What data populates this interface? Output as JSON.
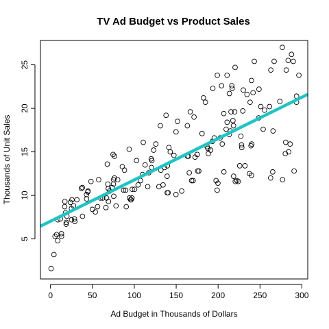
{
  "chart_data": {
    "type": "scatter",
    "title": "TV Ad Budget vs Product Sales",
    "xlabel": "Ad Budget in Thousands of Dollars",
    "ylabel": "Thousands of Unit Sales",
    "xlim": [
      -12,
      307
    ],
    "ylim": [
      0.4,
      27.8
    ],
    "xticks": [
      0,
      50,
      100,
      150,
      200,
      250,
      300
    ],
    "yticks": [
      5,
      10,
      15,
      20,
      25
    ],
    "grid": false,
    "point_style": "open-circle",
    "fit_line": {
      "intercept": 7.03,
      "slope": 0.0475,
      "color": "#20c4c4"
    },
    "points": [
      [
        0.7,
        1.6
      ],
      [
        4.1,
        3.2
      ],
      [
        5.4,
        5.3
      ],
      [
        7.3,
        5.5
      ],
      [
        8.6,
        4.8
      ],
      [
        8.7,
        7.2
      ],
      [
        11.7,
        7.3
      ],
      [
        13.1,
        5.6
      ],
      [
        13.2,
        5.3
      ],
      [
        16.9,
        8.7
      ],
      [
        17.2,
        9.3
      ],
      [
        17.9,
        8.0
      ],
      [
        18.7,
        6.7
      ],
      [
        18.8,
        6.9
      ],
      [
        19.6,
        7.6
      ],
      [
        23.8,
        9.2
      ],
      [
        25.0,
        8.5
      ],
      [
        25.1,
        7.2
      ],
      [
        25.6,
        9.5
      ],
      [
        27.5,
        8.8
      ],
      [
        28.6,
        7.3
      ],
      [
        29.0,
        7.0
      ],
      [
        31.5,
        9.5
      ],
      [
        36.9,
        10.8
      ],
      [
        38.0,
        10.9
      ],
      [
        38.2,
        7.6
      ],
      [
        43.0,
        10.1
      ],
      [
        43.1,
        9.6
      ],
      [
        44.5,
        10.4
      ],
      [
        44.7,
        10.5
      ],
      [
        48.3,
        11.6
      ],
      [
        50.0,
        8.4
      ],
      [
        53.5,
        8.1
      ],
      [
        56.2,
        8.7
      ],
      [
        57.5,
        11.8
      ],
      [
        59.6,
        9.7
      ],
      [
        62.3,
        9.7
      ],
      [
        66.1,
        8.6
      ],
      [
        66.9,
        9.7
      ],
      [
        67.8,
        13.6
      ],
      [
        68.4,
        11.3
      ],
      [
        69.0,
        10.8
      ],
      [
        69.2,
        9.3
      ],
      [
        70.6,
        10.5
      ],
      [
        73.4,
        10.9
      ],
      [
        74.7,
        14.7
      ],
      [
        75.1,
        11.3
      ],
      [
        75.3,
        11.8
      ],
      [
        75.5,
        9.9
      ],
      [
        76.3,
        12.0
      ],
      [
        76.4,
        14.5
      ],
      [
        78.2,
        8.8
      ],
      [
        80.2,
        11.8
      ],
      [
        85.7,
        13.3
      ],
      [
        87.2,
        10.6
      ],
      [
        88.3,
        12.9
      ],
      [
        89.7,
        10.6
      ],
      [
        90.4,
        8.7
      ],
      [
        93.9,
        15.3
      ],
      [
        94.2,
        9.7
      ],
      [
        95.7,
        9.5
      ],
      [
        96.2,
        9.5
      ],
      [
        97.2,
        9.7
      ],
      [
        97.5,
        10.7
      ],
      [
        100.4,
        10.7
      ],
      [
        102.7,
        14.0
      ],
      [
        104.6,
        11.2
      ],
      [
        107.4,
        11.7
      ],
      [
        109.8,
        12.4
      ],
      [
        110.7,
        16.1
      ],
      [
        112.9,
        13.5
      ],
      [
        116.0,
        11.0
      ],
      [
        117.2,
        12.6
      ],
      [
        120.2,
        14.2
      ],
      [
        120.5,
        13.2
      ],
      [
        121.0,
        14.0
      ],
      [
        123.1,
        15.2
      ],
      [
        125.7,
        15.9
      ],
      [
        129.4,
        11.0
      ],
      [
        131.1,
        18.0
      ],
      [
        131.7,
        12.9
      ],
      [
        134.3,
        11.2
      ],
      [
        136.2,
        13.2
      ],
      [
        137.9,
        19.2
      ],
      [
        139.2,
        12.2
      ],
      [
        139.3,
        10.3
      ],
      [
        139.5,
        13.4
      ],
      [
        140.3,
        10.3
      ],
      [
        141.3,
        15.5
      ],
      [
        142.9,
        15.0
      ],
      [
        147.3,
        14.6
      ],
      [
        149.7,
        10.1
      ],
      [
        149.8,
        17.3
      ],
      [
        151.5,
        18.5
      ],
      [
        156.6,
        10.5
      ],
      [
        163.3,
        18.0
      ],
      [
        163.5,
        14.5
      ],
      [
        164.5,
        14.5
      ],
      [
        165.6,
        12.6
      ],
      [
        166.8,
        19.6
      ],
      [
        168.4,
        11.7
      ],
      [
        170.2,
        11.7
      ],
      [
        171.3,
        19.0
      ],
      [
        172.5,
        14.4
      ],
      [
        175.1,
        14.7
      ],
      [
        175.7,
        12.8
      ],
      [
        177.0,
        12.8
      ],
      [
        180.8,
        17.1
      ],
      [
        182.6,
        21.2
      ],
      [
        184.9,
        20.7
      ],
      [
        186.9,
        15.6
      ],
      [
        187.8,
        15.4
      ],
      [
        188.4,
        14.8
      ],
      [
        191.1,
        15.2
      ],
      [
        193.2,
        16.2
      ],
      [
        193.7,
        22.3
      ],
      [
        195.4,
        16.6
      ],
      [
        197.6,
        11.7
      ],
      [
        198.9,
        10.6
      ],
      [
        199.1,
        23.8
      ],
      [
        199.8,
        11.4
      ],
      [
        202.5,
        16.6
      ],
      [
        204.1,
        22.6
      ],
      [
        205.0,
        15.9
      ],
      [
        206.8,
        19.4
      ],
      [
        206.9,
        12.7
      ],
      [
        209.6,
        17.6
      ],
      [
        210.7,
        23.8
      ],
      [
        210.8,
        18.4
      ],
      [
        213.4,
        17.0
      ],
      [
        213.5,
        21.7
      ],
      [
        214.7,
        17.4
      ],
      [
        215.4,
        19.6
      ],
      [
        216.4,
        22.6
      ],
      [
        216.8,
        22.3
      ],
      [
        217.7,
        18.6
      ],
      [
        218.4,
        18.0
      ],
      [
        218.5,
        12.2
      ],
      [
        219.8,
        19.6
      ],
      [
        220.3,
        24.7
      ],
      [
        220.5,
        11.6
      ],
      [
        222.4,
        11.7
      ],
      [
        224.0,
        11.6
      ],
      [
        225.8,
        13.4
      ],
      [
        227.2,
        16.8
      ],
      [
        228.0,
        15.8
      ],
      [
        228.3,
        15.5
      ],
      [
        229.5,
        19.7
      ],
      [
        230.1,
        22.1
      ],
      [
        232.1,
        13.4
      ],
      [
        234.5,
        21.6
      ],
      [
        237.4,
        12.5
      ],
      [
        238.2,
        20.7
      ],
      [
        239.3,
        15.7
      ],
      [
        239.8,
        12.3
      ],
      [
        239.9,
        23.2
      ],
      [
        240.1,
        15.9
      ],
      [
        241.7,
        21.8
      ],
      [
        243.2,
        25.4
      ],
      [
        248.4,
        18.9
      ],
      [
        248.8,
        22.2
      ],
      [
        250.9,
        20.2
      ],
      [
        253.8,
        17.6
      ],
      [
        255.4,
        19.8
      ],
      [
        261.3,
        20.2
      ],
      [
        262.7,
        12.0
      ],
      [
        262.9,
        24.4
      ],
      [
        265.2,
        12.7
      ],
      [
        265.6,
        17.4
      ],
      [
        266.9,
        25.4
      ],
      [
        273.7,
        20.8
      ],
      [
        276.7,
        27.0
      ],
      [
        276.9,
        11.8
      ],
      [
        280.2,
        14.8
      ],
      [
        280.7,
        16.1
      ],
      [
        281.4,
        24.4
      ],
      [
        283.6,
        25.5
      ],
      [
        284.3,
        15.0
      ],
      [
        286.0,
        15.9
      ],
      [
        287.6,
        26.2
      ],
      [
        289.7,
        25.4
      ],
      [
        290.7,
        12.8
      ],
      [
        293.6,
        21.4
      ],
      [
        293.6,
        20.7
      ],
      [
        296.4,
        23.8
      ]
    ]
  }
}
